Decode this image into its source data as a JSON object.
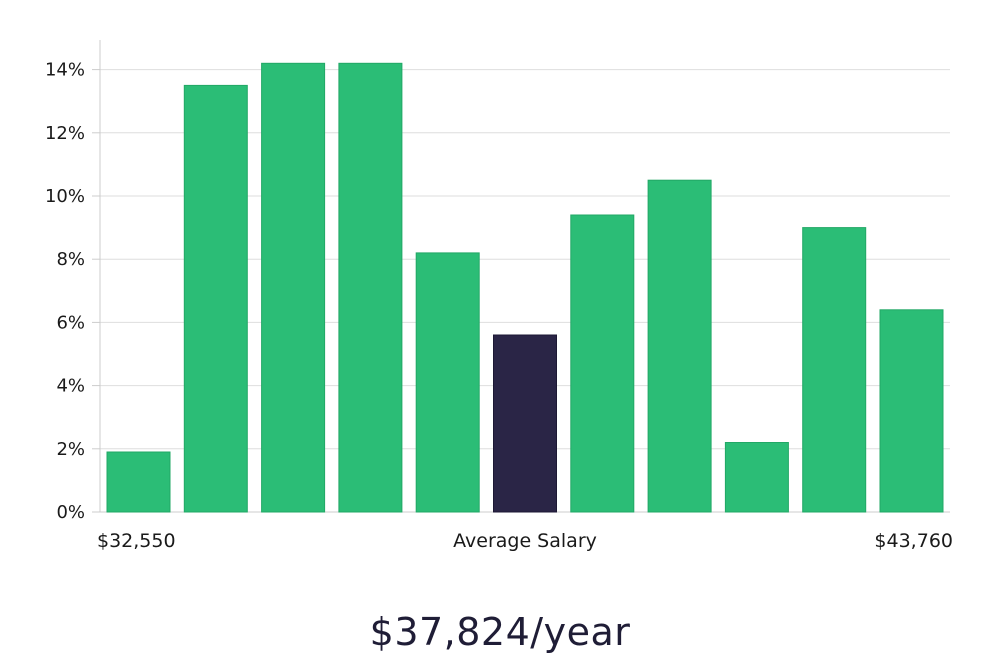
{
  "chart_data": {
    "type": "bar",
    "xlabel": "Average Salary",
    "x_range_labels": {
      "min": "$32,550",
      "max": "$43,760"
    },
    "y_ticks": [
      "0%",
      "2%",
      "4%",
      "6%",
      "8%",
      "10%",
      "12%",
      "14%"
    ],
    "ylim": [
      0,
      15
    ],
    "grid": true,
    "values": [
      1.9,
      13.5,
      14.2,
      14.2,
      8.2,
      5.6,
      9.4,
      10.5,
      2.2,
      9.0,
      6.4
    ],
    "highlight_index": 5,
    "colors": {
      "bar": "#2bbd76",
      "highlight": "#2a2546",
      "grid": "#dedede",
      "axis": "#cccccc"
    }
  },
  "salary_display": "$37,824/year"
}
